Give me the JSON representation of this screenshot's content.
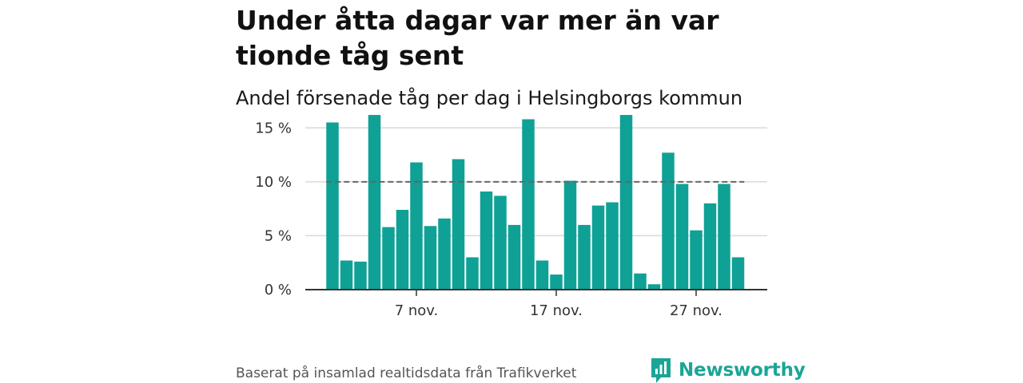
{
  "title": "Under åtta dagar var mer än var tionde tåg sent",
  "subtitle": "Andel försenade tåg per dag i Helsingborgs kommun",
  "source": "Baserat på insamlad realtidsdata från Trafikverket",
  "brand": {
    "name": "Newsworthy",
    "color": "#1aa596",
    "icon": "newsworthy-logo-icon"
  },
  "colors": {
    "bar": "#0fa195",
    "grid": "#d9d9d9",
    "axis": "#333333",
    "reference_line": "#666666"
  },
  "chart_data": {
    "type": "bar",
    "x": [
      1,
      2,
      3,
      4,
      5,
      6,
      7,
      8,
      9,
      10,
      11,
      12,
      13,
      14,
      15,
      16,
      17,
      18,
      19,
      20,
      21,
      22,
      23,
      24,
      25,
      26,
      27,
      28,
      29,
      30
    ],
    "values": [
      15.5,
      2.7,
      2.6,
      16.2,
      5.8,
      7.4,
      11.8,
      5.9,
      6.6,
      12.1,
      3.0,
      9.1,
      8.7,
      6.0,
      15.8,
      2.7,
      1.4,
      10.1,
      6.0,
      7.8,
      8.1,
      16.2,
      1.5,
      0.5,
      12.7,
      9.8,
      5.5,
      8.0,
      9.8,
      3.0
    ],
    "x_ticks": [
      {
        "x": 7,
        "label": "7 nov."
      },
      {
        "x": 17,
        "label": "17 nov."
      },
      {
        "x": 27,
        "label": "27 nov."
      }
    ],
    "y_ticks": [
      {
        "value": 0,
        "label": "0 %"
      },
      {
        "value": 5,
        "label": "5 %"
      },
      {
        "value": 10,
        "label": "10 %"
      },
      {
        "value": 15,
        "label": "15 %"
      }
    ],
    "ylim": [
      0,
      16.5
    ],
    "reference_line": 10,
    "grid": true
  }
}
